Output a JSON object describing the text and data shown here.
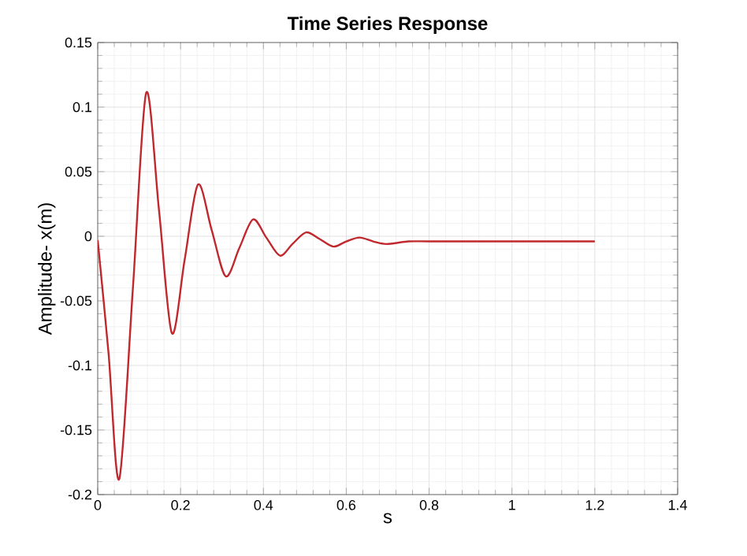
{
  "chart_data": {
    "type": "line",
    "title": "Time Series Response",
    "xlabel": "s",
    "ylabel": "Amplitude- x(m)",
    "xlim": [
      0,
      1.4
    ],
    "xticks": [
      0,
      0.2,
      0.4,
      0.6,
      0.8,
      1,
      1.2,
      1.4
    ],
    "ylim": [
      -0.2,
      0.15
    ],
    "yticks": [
      -0.2,
      -0.15,
      -0.1,
      -0.05,
      0,
      0.05,
      0.1,
      0.15
    ],
    "grid": true,
    "marker": "none",
    "line_style": "solid",
    "series": [
      {
        "color": "#c0282d",
        "x": [
          0,
          0.026,
          0.052,
          0.085,
          0.117,
          0.148,
          0.179,
          0.21,
          0.242,
          0.275,
          0.309,
          0.342,
          0.375,
          0.407,
          0.44,
          0.47,
          0.503,
          0.535,
          0.569,
          0.6,
          0.632,
          0.665,
          0.697,
          0.75,
          0.8,
          0.9,
          1.0,
          1.1,
          1.2
        ],
        "values": [
          -0.003,
          -0.09,
          -0.188,
          -0.04,
          0.111,
          0.02,
          -0.075,
          -0.018,
          0.04,
          0.005,
          -0.031,
          -0.009,
          0.013,
          -0.001,
          -0.015,
          -0.006,
          0.003,
          -0.002,
          -0.008,
          -0.004,
          -0.001,
          -0.004,
          -0.006,
          -0.004,
          -0.004,
          -0.004,
          -0.004,
          -0.004,
          -0.004
        ]
      }
    ]
  }
}
